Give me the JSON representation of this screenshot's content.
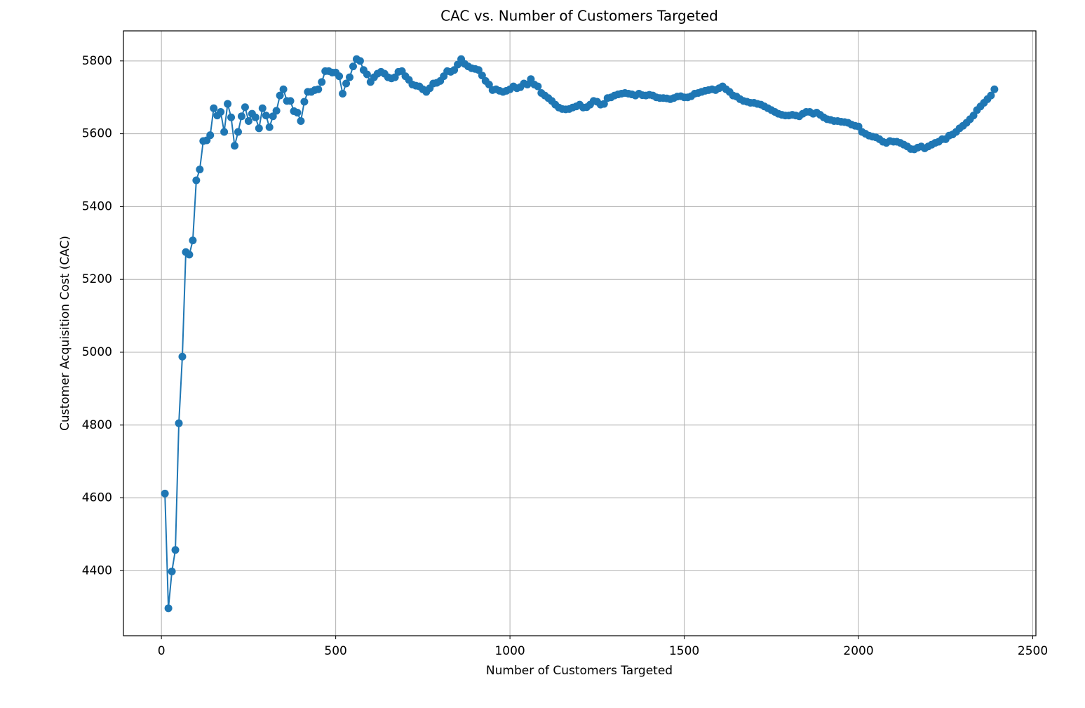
{
  "chart_data": {
    "type": "line",
    "title": "CAC vs. Number of Customers Targeted",
    "x_label": "Number of Customers Targeted",
    "y_label": "Customer Acquisition Cost (CAC)",
    "xlim": [
      -109,
      2509
    ],
    "ylim": [
      4221.5,
      5882.5
    ],
    "xticks": [
      0,
      500,
      1000,
      1500,
      2000,
      2500
    ],
    "yticks": [
      4400,
      4600,
      4800,
      5000,
      5200,
      5400,
      5600,
      5800
    ],
    "grid": true,
    "marker": "circle",
    "x": [
      10,
      20,
      30,
      40,
      50,
      60,
      70,
      80,
      90,
      100,
      110,
      120,
      130,
      140,
      150,
      160,
      170,
      180,
      190,
      200,
      210,
      220,
      230,
      240,
      250,
      260,
      270,
      280,
      290,
      300,
      310,
      320,
      330,
      340,
      350,
      360,
      370,
      380,
      390,
      400,
      410,
      420,
      430,
      440,
      450,
      460,
      470,
      480,
      490,
      500,
      510,
      520,
      530,
      540,
      550,
      560,
      570,
      580,
      590,
      600,
      610,
      620,
      630,
      640,
      650,
      660,
      670,
      680,
      690,
      700,
      710,
      720,
      730,
      740,
      750,
      760,
      770,
      780,
      790,
      800,
      810,
      820,
      830,
      840,
      850,
      860,
      870,
      880,
      890,
      900,
      910,
      920,
      930,
      940,
      950,
      960,
      970,
      980,
      990,
      1000,
      1010,
      1020,
      1030,
      1040,
      1050,
      1060,
      1070,
      1080,
      1090,
      1100,
      1110,
      1120,
      1130,
      1140,
      1150,
      1160,
      1170,
      1180,
      1190,
      1200,
      1210,
      1220,
      1230,
      1240,
      1250,
      1260,
      1270,
      1280,
      1290,
      1300,
      1310,
      1320,
      1330,
      1340,
      1350,
      1360,
      1370,
      1380,
      1390,
      1400,
      1410,
      1420,
      1430,
      1440,
      1450,
      1460,
      1470,
      1480,
      1490,
      1500,
      1510,
      1520,
      1530,
      1540,
      1550,
      1560,
      1570,
      1580,
      1590,
      1600,
      1610,
      1620,
      1630,
      1640,
      1650,
      1660,
      1670,
      1680,
      1690,
      1700,
      1710,
      1720,
      1730,
      1740,
      1750,
      1760,
      1770,
      1780,
      1790,
      1800,
      1810,
      1820,
      1830,
      1840,
      1850,
      1860,
      1870,
      1880,
      1890,
      1900,
      1910,
      1920,
      1930,
      1940,
      1950,
      1960,
      1970,
      1980,
      1990,
      2000,
      2010,
      2020,
      2030,
      2040,
      2050,
      2060,
      2070,
      2080,
      2090,
      2100,
      2110,
      2120,
      2130,
      2140,
      2150,
      2160,
      2170,
      2180,
      2190,
      2200,
      2210,
      2220,
      2230,
      2240,
      2250,
      2260,
      2270,
      2280,
      2290,
      2300,
      2310,
      2320,
      2330,
      2340,
      2350,
      2360,
      2370,
      2380,
      2390
    ],
    "series": [
      {
        "color": "#1f77b4",
        "values": [
          4612,
          4297,
          4398,
          4457,
          4805,
          4988,
          5275,
          5268,
          5307,
          5472,
          5502,
          5580,
          5582,
          5596,
          5670,
          5650,
          5660,
          5605,
          5682,
          5645,
          5567,
          5605,
          5648,
          5673,
          5635,
          5655,
          5645,
          5615,
          5670,
          5650,
          5618,
          5648,
          5663,
          5705,
          5722,
          5690,
          5690,
          5662,
          5658,
          5635,
          5688,
          5715,
          5715,
          5720,
          5722,
          5742,
          5772,
          5772,
          5768,
          5768,
          5758,
          5710,
          5738,
          5755,
          5785,
          5805,
          5800,
          5775,
          5763,
          5742,
          5755,
          5765,
          5770,
          5765,
          5755,
          5752,
          5755,
          5770,
          5772,
          5758,
          5748,
          5735,
          5732,
          5730,
          5722,
          5715,
          5725,
          5738,
          5740,
          5745,
          5758,
          5772,
          5770,
          5775,
          5790,
          5805,
          5792,
          5785,
          5780,
          5778,
          5775,
          5760,
          5745,
          5735,
          5720,
          5722,
          5718,
          5715,
          5718,
          5722,
          5730,
          5725,
          5728,
          5738,
          5735,
          5750,
          5735,
          5730,
          5712,
          5705,
          5698,
          5690,
          5680,
          5672,
          5668,
          5667,
          5668,
          5672,
          5675,
          5680,
          5672,
          5673,
          5680,
          5690,
          5688,
          5680,
          5682,
          5698,
          5700,
          5705,
          5708,
          5710,
          5712,
          5710,
          5708,
          5705,
          5710,
          5706,
          5705,
          5707,
          5705,
          5700,
          5698,
          5698,
          5697,
          5695,
          5698,
          5702,
          5703,
          5700,
          5700,
          5703,
          5710,
          5712,
          5715,
          5718,
          5720,
          5722,
          5720,
          5725,
          5730,
          5722,
          5715,
          5705,
          5702,
          5695,
          5690,
          5688,
          5685,
          5685,
          5682,
          5680,
          5675,
          5670,
          5665,
          5660,
          5655,
          5652,
          5650,
          5650,
          5652,
          5650,
          5648,
          5655,
          5660,
          5660,
          5655,
          5658,
          5652,
          5645,
          5640,
          5638,
          5635,
          5635,
          5633,
          5632,
          5630,
          5625,
          5622,
          5620,
          5605,
          5600,
          5595,
          5592,
          5590,
          5585,
          5578,
          5575,
          5580,
          5578,
          5578,
          5575,
          5570,
          5565,
          5558,
          5557,
          5562,
          5565,
          5560,
          5565,
          5570,
          5575,
          5578,
          5585,
          5585,
          5595,
          5598,
          5605,
          5615,
          5622,
          5630,
          5640,
          5650,
          5665,
          5675,
          5685,
          5695,
          5705,
          5722
        ]
      }
    ]
  }
}
